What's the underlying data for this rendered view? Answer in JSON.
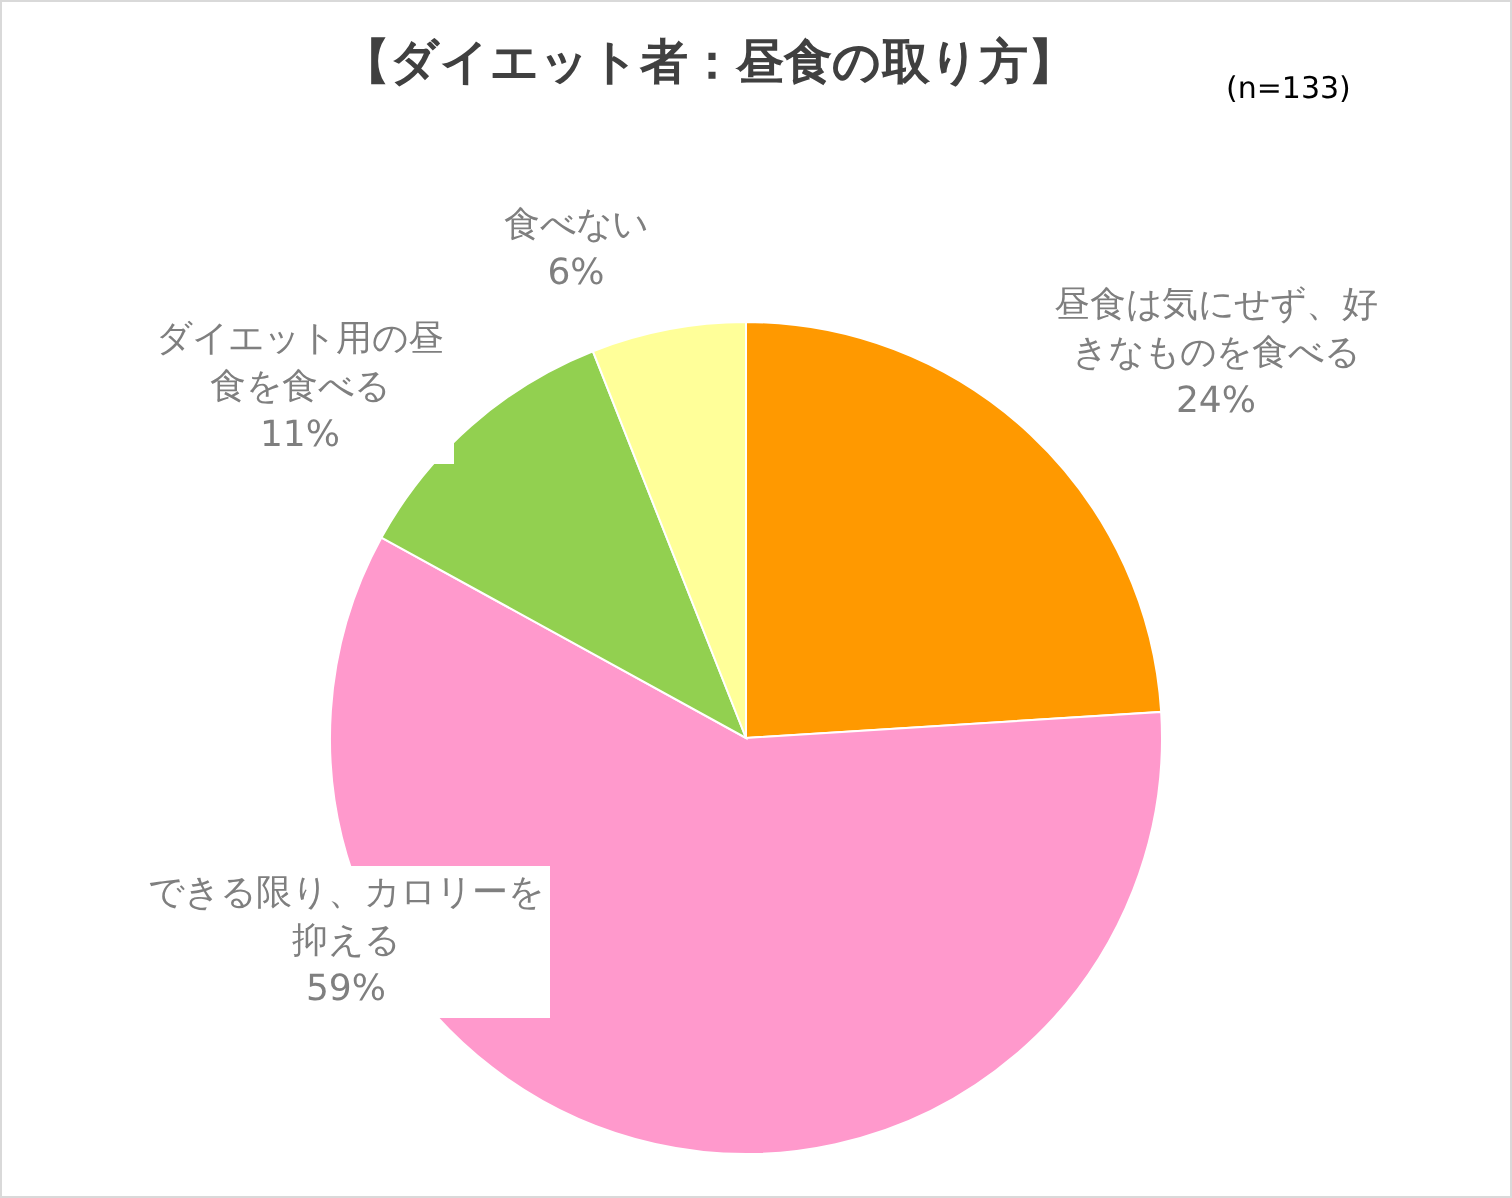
{
  "chart_data": {
    "type": "pie",
    "title": "【ダイエット者：昼食の取り方】",
    "annotations": [
      "(n=133)"
    ],
    "categories": [
      "昼食は気にせず、好きなものを食べる",
      "できる限り、カロリーを抑える",
      "ダイエット用の昼食を食べる",
      "食べない"
    ],
    "values": [
      24,
      59,
      11,
      6
    ],
    "value_labels": [
      "24%",
      "59%",
      "11%",
      "6%"
    ],
    "colors": [
      "#ff9900",
      "#ff99cc",
      "#92d050",
      "#ffff99"
    ]
  }
}
